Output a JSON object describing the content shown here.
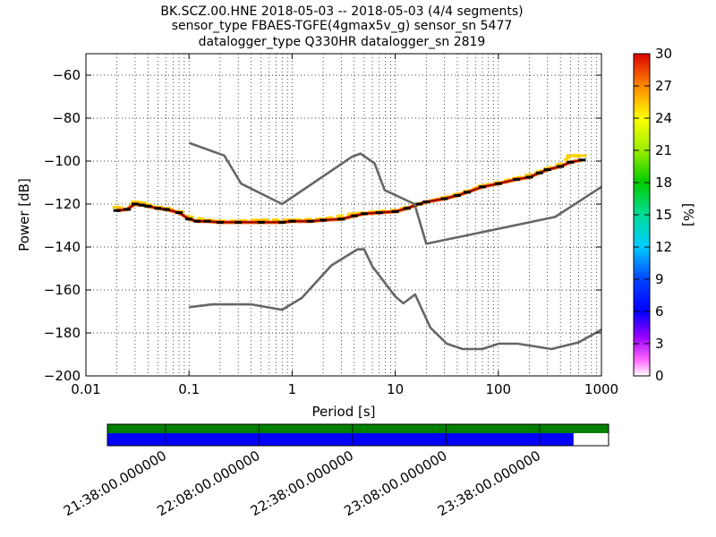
{
  "chart_data": {
    "type": "line",
    "title_lines": [
      "BK.SCZ.00.HNE   2018-05-03 -- 2018-05-03  (4/4 segments)",
      "sensor_type FBAES-TGFE(4gmax5v_g) sensor_sn 5477",
      "datalogger_type Q330HR datalogger_sn 2819"
    ],
    "xlabel": "Period [s]",
    "ylabel": "Power [dB]",
    "xscale": "log",
    "xlim": [
      0.01,
      1000
    ],
    "ylim": [
      -200,
      -50
    ],
    "xticks": [
      {
        "value": 0.01,
        "label": "0.01"
      },
      {
        "value": 0.1,
        "label": "0.1"
      },
      {
        "value": 1,
        "label": "1"
      },
      {
        "value": 10,
        "label": "10"
      },
      {
        "value": 100,
        "label": "100"
      },
      {
        "value": 1000,
        "label": "1000"
      }
    ],
    "yticks": [
      {
        "value": -60,
        "label": "−60"
      },
      {
        "value": -80,
        "label": "−80"
      },
      {
        "value": -100,
        "label": "−100"
      },
      {
        "value": -120,
        "label": "−120"
      },
      {
        "value": -140,
        "label": "−140"
      },
      {
        "value": -160,
        "label": "−160"
      },
      {
        "value": -180,
        "label": "−180"
      },
      {
        "value": -200,
        "label": "−200"
      }
    ],
    "grid": "dotted",
    "reference_curves": [
      {
        "key": "high-noise-model",
        "color": "#666666",
        "x": [
          0.1,
          0.22,
          0.32,
          0.8,
          3.8,
          4.6,
          6.3,
          7.9,
          15.4,
          20,
          354.8,
          1000
        ],
        "y": [
          -91.5,
          -97.4,
          -110.5,
          -120,
          -98,
          -96.5,
          -101,
          -113.5,
          -120,
          -138.5,
          -126,
          -112
        ]
      },
      {
        "key": "low-noise-model",
        "color": "#666666",
        "x": [
          0.1,
          0.17,
          0.4,
          0.8,
          1.24,
          2.4,
          4.3,
          5.0,
          6.0,
          10,
          12,
          15.6,
          21.9,
          31.6,
          45,
          70,
          101,
          154,
          328,
          600,
          1000
        ],
        "y": [
          -168,
          -166.7,
          -166.7,
          -169.2,
          -163.7,
          -148.6,
          -141.1,
          -141.1,
          -149,
          -163,
          -166.2,
          -162.1,
          -177.5,
          -185,
          -187.5,
          -187.5,
          -185,
          -185,
          -187.5,
          -184.4,
          -178.5
        ]
      }
    ],
    "psd_mode": {
      "x": [
        0.02,
        0.025,
        0.03,
        0.035,
        0.04,
        0.05,
        0.06,
        0.08,
        0.1,
        0.12,
        0.15,
        0.2,
        0.3,
        0.5,
        0.8,
        1,
        1.5,
        2,
        3,
        4,
        5,
        7,
        10,
        13,
        17,
        20,
        30,
        40,
        50,
        70,
        100,
        150,
        200,
        250,
        300,
        400,
        500,
        650
      ],
      "y": [
        -123,
        -122.5,
        -120,
        -120.5,
        -121,
        -122,
        -122.5,
        -124,
        -127,
        -128,
        -128,
        -128.5,
        -128.5,
        -128.5,
        -128.5,
        -128,
        -128,
        -127.5,
        -127,
        -125.5,
        -124.5,
        -124,
        -123.5,
        -122,
        -120,
        -119,
        -117.5,
        -116,
        -114.5,
        -112,
        -110.5,
        -108.5,
        -107.5,
        -105.5,
        -104,
        -102.5,
        -100.5,
        -99.5
      ]
    },
    "psd_spread": {
      "x": [
        0.02,
        0.025,
        0.03,
        0.035,
        0.04,
        0.05,
        0.06,
        0.08,
        0.1,
        0.15,
        0.2,
        0.3,
        0.5,
        1,
        2,
        4,
        7,
        10,
        17,
        30,
        50,
        70,
        100,
        150,
        200,
        300,
        400,
        500,
        650
      ],
      "y": [
        -121.5,
        -122.5,
        -119,
        -119.5,
        -120.5,
        -121.5,
        -122,
        -123.5,
        -126,
        -127.5,
        -128,
        -128,
        -127.5,
        -127.5,
        -127,
        -124.5,
        -123.5,
        -123,
        -120,
        -117,
        -114,
        -111.5,
        -110,
        -108,
        -106.5,
        -103.5,
        -101.5,
        -97.5,
        -97.5
      ]
    },
    "colorbar": {
      "label": "[%]",
      "min": 0,
      "max": 30,
      "ticks": [
        {
          "value": 0,
          "label": "0"
        },
        {
          "value": 3,
          "label": "3"
        },
        {
          "value": 6,
          "label": "6"
        },
        {
          "value": 9,
          "label": "9"
        },
        {
          "value": 12,
          "label": "12"
        },
        {
          "value": 15,
          "label": "15"
        },
        {
          "value": 18,
          "label": "18"
        },
        {
          "value": 21,
          "label": "21"
        },
        {
          "value": 24,
          "label": "24"
        },
        {
          "value": 27,
          "label": "27"
        },
        {
          "value": 30,
          "label": "30"
        }
      ]
    },
    "data_coverage": {
      "labels": [
        "21:38:00.000000",
        "22:08:00.000000",
        "22:38:00.000000",
        "23:08:00.000000",
        "23:38:00.000000"
      ],
      "segments_fraction": 1.0,
      "data_fraction": 0.93,
      "segments_color": "#008000",
      "data_color": "#0000ff"
    }
  }
}
